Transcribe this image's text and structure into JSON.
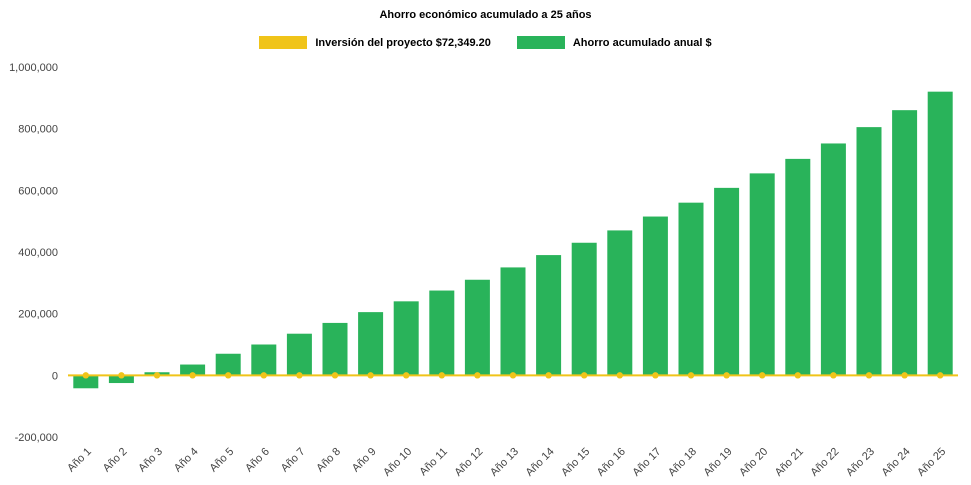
{
  "page": {
    "background": "#ffffff"
  },
  "chart_data": {
    "type": "bar",
    "title": "Ahorro económico acumulado a 25 años",
    "categories": [
      "Año 1",
      "Año 2",
      "Año 3",
      "Año 4",
      "Año 5",
      "Año 6",
      "Año 7",
      "Año 8",
      "Año 9",
      "Año 10",
      "Año 11",
      "Año 12",
      "Año 13",
      "Año 14",
      "Año 15",
      "Año 16",
      "Año 17",
      "Año 18",
      "Año 19",
      "Año 20",
      "Año 21",
      "Año 22",
      "Año 23",
      "Año 24",
      "Año 25"
    ],
    "series": [
      {
        "name": "Inversión del proyecto $72,349.20",
        "type": "line",
        "color": "#F0C419",
        "value": 0
      },
      {
        "name": "Ahorro acumulado anual $",
        "type": "bar",
        "color": "#29B35A",
        "values": [
          -42000,
          -25000,
          10000,
          35000,
          70000,
          100000,
          135000,
          170000,
          205000,
          240000,
          275000,
          310000,
          350000,
          390000,
          430000,
          470000,
          515000,
          560000,
          608000,
          655000,
          702000,
          752000,
          805000,
          860000,
          920000
        ]
      }
    ],
    "ylim": [
      -200000,
      1000000
    ],
    "yticks": [
      -200000,
      0,
      200000,
      400000,
      600000,
      800000,
      1000000
    ],
    "grid": false,
    "legend_position": "top"
  }
}
